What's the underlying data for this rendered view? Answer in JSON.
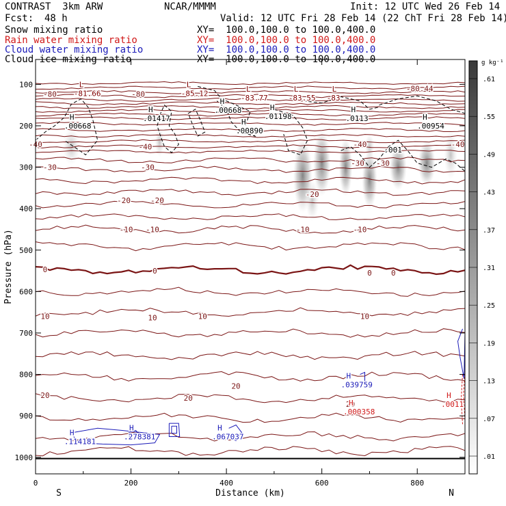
{
  "header": {
    "model": "CONTRAST  3km ARW",
    "org": "NCAR/MMMM",
    "init": "Init: 12 UTC Wed 26 Feb 14",
    "fcst_label": "Fcst:",
    "fcst_value": "48 h",
    "valid": "Valid: 12 UTC Fri 28 Feb 14 (22 ChT Fri 28 Feb 14)"
  },
  "legend": [
    {
      "name": "Snow mixing ratio",
      "xy": "XY=  100.0,100.0 to 100.0,400.0",
      "color": "#000000"
    },
    {
      "name": "Rain water mixing ratio",
      "xy": "XY=  100.0,100.0 to 100.0,400.0",
      "color": "#d01818"
    },
    {
      "name": "Cloud water mixing ratio",
      "xy": "XY=  100.0,100.0 to 100.0,400.0",
      "color": "#1a1ab8"
    },
    {
      "name": "Cloud ice mixing ratio",
      "xy": "XY=  100.0,100.0 to 100.0,400.0",
      "color": "#000000"
    }
  ],
  "chart_data": {
    "type": "cross-section contour",
    "title": "Snow / Rain water / Cloud water / Cloud ice mixing ratio",
    "xlabel": "Distance (km)",
    "ylabel": "Pressure (hPa)",
    "xlim": [
      0,
      900
    ],
    "ylim": [
      1040,
      40
    ],
    "x_ticks": [
      0,
      200,
      400,
      600,
      800
    ],
    "y_ticks": [
      100,
      200,
      300,
      400,
      500,
      600,
      700,
      800,
      900,
      1000
    ],
    "endpoint_left": "S",
    "endpoint_right": "N",
    "colorbar": {
      "unit": "g kg⁻¹",
      "levels": [
        ".01",
        ".07",
        ".13",
        ".19",
        ".25",
        ".31",
        ".37",
        ".43",
        ".49",
        ".55",
        ".61"
      ]
    },
    "temperature_labels": [
      {
        "x": 30,
        "p": 123,
        "text": "-80"
      },
      {
        "x": 215,
        "p": 123,
        "text": "-80"
      },
      {
        "x": 805,
        "p": 110,
        "text": "-80.44"
      },
      {
        "x": 0,
        "p": 245,
        "text": "-40"
      },
      {
        "x": 230,
        "p": 250,
        "text": "-40"
      },
      {
        "x": 680,
        "p": 245,
        "text": "-40"
      },
      {
        "x": 885,
        "p": 245,
        "text": "-40"
      },
      {
        "x": 30,
        "p": 300,
        "text": "-30"
      },
      {
        "x": 235,
        "p": 300,
        "text": "-30"
      },
      {
        "x": 675,
        "p": 290,
        "text": "-30"
      },
      {
        "x": 728,
        "p": 290,
        "text": "-30"
      },
      {
        "x": 185,
        "p": 380,
        "text": "-20"
      },
      {
        "x": 255,
        "p": 380,
        "text": "-20"
      },
      {
        "x": 580,
        "p": 365,
        "text": "-20"
      },
      {
        "x": 190,
        "p": 450,
        "text": "-10"
      },
      {
        "x": 245,
        "p": 450,
        "text": "-10"
      },
      {
        "x": 560,
        "p": 450,
        "text": "-10"
      },
      {
        "x": 680,
        "p": 450,
        "text": "-10"
      },
      {
        "x": 20,
        "p": 547,
        "text": "0"
      },
      {
        "x": 250,
        "p": 550,
        "text": "0"
      },
      {
        "x": 700,
        "p": 555,
        "text": "0"
      },
      {
        "x": 750,
        "p": 555,
        "text": "0"
      },
      {
        "x": 20,
        "p": 660,
        "text": "10"
      },
      {
        "x": 245,
        "p": 663,
        "text": "10"
      },
      {
        "x": 350,
        "p": 660,
        "text": "10"
      },
      {
        "x": 690,
        "p": 660,
        "text": "10"
      },
      {
        "x": 420,
        "p": 828,
        "text": "20"
      },
      {
        "x": 320,
        "p": 857,
        "text": "20"
      },
      {
        "x": 20,
        "p": 850,
        "text": "20"
      },
      {
        "x": 660,
        "p": 872,
        "text": "20"
      }
    ],
    "extrema": [
      {
        "x": 100,
        "p": 122,
        "sym": "L",
        "value": "-81.66",
        "color": "#800000"
      },
      {
        "x": 325,
        "p": 122,
        "sym": "L",
        "value": "-85.12",
        "color": "#800000"
      },
      {
        "x": 450,
        "p": 132,
        "sym": "L",
        "value": "-83.77",
        "color": "#800000"
      },
      {
        "x": 550,
        "p": 132,
        "sym": "L",
        "value": "-83.55",
        "color": "#800000"
      },
      {
        "x": 630,
        "p": 132,
        "sym": "L",
        "value": "-83",
        "color": "#800000"
      },
      {
        "x": 80,
        "p": 200,
        "sym": "H",
        "value": ".00668",
        "color": "#000000"
      },
      {
        "x": 245,
        "p": 182,
        "sym": "H",
        "value": ".01417",
        "color": "#000000"
      },
      {
        "x": 395,
        "p": 162,
        "sym": "H",
        "value": ".00668",
        "color": "#000000"
      },
      {
        "x": 500,
        "p": 177,
        "sym": "H",
        "value": ".01198",
        "color": "#000000"
      },
      {
        "x": 670,
        "p": 182,
        "sym": "H",
        "value": ".0113",
        "color": "#000000"
      },
      {
        "x": 820,
        "p": 200,
        "sym": "H",
        "value": ".00954",
        "color": "#000000"
      },
      {
        "x": 440,
        "p": 212,
        "sym": "H",
        "value": ".00890",
        "color": "#000000"
      },
      {
        "x": 750,
        "p": 258,
        "sym": "",
        "value": ".001",
        "color": "#000000"
      },
      {
        "x": 660,
        "p": 825,
        "sym": "H",
        "value": ".039759",
        "color": "#1a1ab8"
      },
      {
        "x": 665,
        "p": 890,
        "sym": "H",
        "value": ".000358",
        "color": "#d01818"
      },
      {
        "x": 870,
        "p": 872,
        "sym": "H",
        "value": ".0011",
        "color": "#d01818"
      },
      {
        "x": 80,
        "p": 962,
        "sym": "H",
        "value": ".114181",
        "color": "#1a1ab8"
      },
      {
        "x": 205,
        "p": 950,
        "sym": "H",
        "value": ".278381",
        "color": "#1a1ab8"
      },
      {
        "x": 390,
        "p": 950,
        "sym": "H",
        "value": ".067037",
        "color": "#1a1ab8"
      }
    ]
  }
}
